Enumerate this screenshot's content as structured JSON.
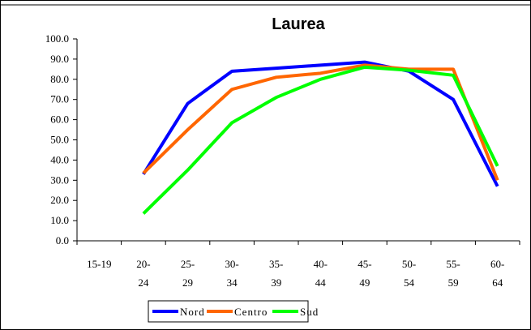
{
  "chart_data": {
    "type": "line",
    "title": "Laurea",
    "categories": [
      "15-19",
      "20-24",
      "25-29",
      "30-34",
      "35-39",
      "40-44",
      "45-49",
      "50-54",
      "55-59",
      "60-64"
    ],
    "series": [
      {
        "name": "Nord",
        "color": "#0000ff",
        "values": [
          null,
          33,
          68,
          84,
          85.5,
          87,
          88.5,
          84,
          70,
          27
        ]
      },
      {
        "name": "Centro",
        "color": "#ff6600",
        "values": [
          null,
          33.5,
          55,
          75,
          81,
          83,
          87,
          85,
          85,
          30
        ]
      },
      {
        "name": "Sud",
        "color": "#00ff00",
        "values": [
          null,
          13.5,
          35,
          58.5,
          71,
          80,
          86,
          84.5,
          82,
          37
        ]
      }
    ],
    "ylim": [
      0,
      100
    ],
    "yticks": [
      {
        "value": 0,
        "label": "0.0"
      },
      {
        "value": 10,
        "label": "10.0"
      },
      {
        "value": 20,
        "label": "20.0"
      },
      {
        "value": 30,
        "label": "30.0"
      },
      {
        "value": 40,
        "label": "40.0"
      },
      {
        "value": 50,
        "label": "50.0"
      },
      {
        "value": 60,
        "label": "60.0"
      },
      {
        "value": 70,
        "label": "70.0"
      },
      {
        "value": 80,
        "label": "80.0"
      },
      {
        "value": 90,
        "label": "90.0"
      },
      {
        "value": 100,
        "label": "100.0"
      }
    ],
    "legend": "bottom"
  }
}
